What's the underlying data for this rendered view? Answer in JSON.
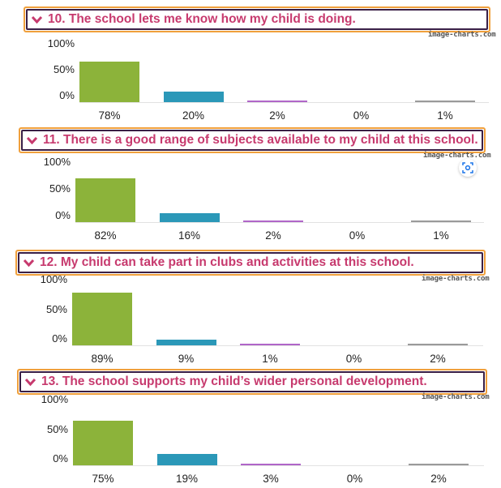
{
  "colors": {
    "accent_border": "#f0a03c",
    "inner_border": "#3a1f45",
    "question_text": "#c73a6e",
    "strongly_agree": "#8cb33a",
    "agree": "#2b98b8",
    "disagree": "#b066c8",
    "strongly_disagree": "#d8d8d8",
    "dont_know": "#9a9a9a"
  },
  "y_ticks": [
    "100%",
    "50%",
    "0%"
  ],
  "watermark": "image-charts.com",
  "questions": [
    {
      "title": "10. The school lets me know how my child is doing.",
      "values": [
        78,
        20,
        2,
        0,
        1
      ],
      "labels": [
        "78%",
        "20%",
        "2%",
        "0%",
        "1%"
      ]
    },
    {
      "title": "11. There is a good range of subjects available to my child at this school.",
      "values": [
        82,
        16,
        2,
        0,
        1
      ],
      "labels": [
        "82%",
        "16%",
        "2%",
        "0%",
        "1%"
      ]
    },
    {
      "title": "12. My child can take part in clubs and activities at this school.",
      "values": [
        89,
        9,
        1,
        0,
        2
      ],
      "labels": [
        "89%",
        "9%",
        "1%",
        "0%",
        "2%"
      ]
    },
    {
      "title": "13. The school supports my child’s wider personal development.",
      "values": [
        75,
        19,
        3,
        0,
        2
      ],
      "labels": [
        "75%",
        "19%",
        "3%",
        "0%",
        "2%"
      ]
    }
  ]
}
